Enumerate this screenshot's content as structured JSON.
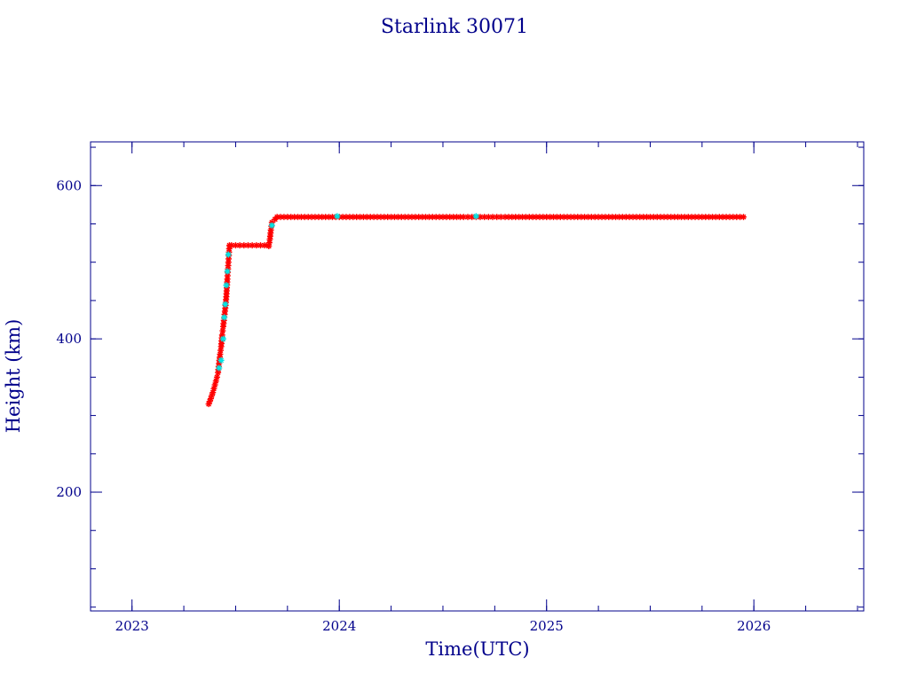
{
  "chart_data": {
    "type": "scatter",
    "title": "Starlink 30071",
    "xlabel": "Time(UTC)",
    "ylabel": "Height (km)",
    "xlim": [
      2022.8,
      2026.53
    ],
    "ylim": [
      45,
      657
    ],
    "x_major_ticks": [
      2023,
      2024,
      2025,
      2026
    ],
    "x_tick_labels": [
      "2023",
      "2024",
      "2025",
      "2026"
    ],
    "x_minor_step": 0.25,
    "y_major_ticks": [
      200,
      400,
      600
    ],
    "y_tick_labels": [
      "200",
      "400",
      "600"
    ],
    "y_minor_step": 50,
    "grid": false,
    "marker": "asterisk",
    "series": [
      {
        "color": "#ff0000",
        "points": [
          [
            2023.37,
            315
          ],
          [
            2023.38,
            322
          ],
          [
            2023.39,
            330
          ],
          [
            2023.4,
            340
          ],
          [
            2023.41,
            350
          ],
          [
            2023.415,
            356
          ],
          [
            2023.42,
            368
          ],
          [
            2023.425,
            380
          ],
          [
            2023.43,
            390
          ],
          [
            2023.435,
            405
          ],
          [
            2023.44,
            416
          ],
          [
            2023.45,
            440
          ],
          [
            2023.455,
            455
          ],
          [
            2023.46,
            478
          ],
          [
            2023.465,
            500
          ],
          [
            2023.47,
            522
          ],
          [
            2023.48,
            522
          ],
          [
            2023.5,
            522
          ],
          [
            2023.52,
            522
          ],
          [
            2023.54,
            522
          ],
          [
            2023.56,
            522
          ],
          [
            2023.58,
            522
          ],
          [
            2023.6,
            522
          ],
          [
            2023.62,
            522
          ],
          [
            2023.64,
            522
          ],
          [
            2023.66,
            521
          ],
          [
            2023.665,
            530
          ],
          [
            2023.67,
            542
          ],
          [
            2023.675,
            552
          ],
          [
            2023.69,
            556
          ],
          [
            2023.7,
            559
          ],
          [
            2023.75,
            559
          ],
          [
            2023.8,
            559
          ],
          [
            2023.85,
            559
          ],
          [
            2023.9,
            559
          ],
          [
            2023.95,
            559
          ],
          [
            2024.0,
            559
          ],
          [
            2024.05,
            559
          ],
          [
            2024.1,
            559
          ],
          [
            2024.15,
            559
          ],
          [
            2024.2,
            559
          ],
          [
            2024.25,
            559
          ],
          [
            2024.3,
            559
          ],
          [
            2024.35,
            559
          ],
          [
            2024.4,
            559
          ],
          [
            2024.45,
            559
          ],
          [
            2024.5,
            559
          ],
          [
            2024.55,
            559
          ],
          [
            2024.6,
            559
          ],
          [
            2024.64,
            559
          ],
          [
            2024.68,
            559
          ],
          [
            2024.72,
            559
          ],
          [
            2024.76,
            559
          ],
          [
            2024.8,
            559
          ],
          [
            2024.85,
            559
          ],
          [
            2024.9,
            559
          ],
          [
            2024.95,
            559
          ],
          [
            2025.0,
            559
          ],
          [
            2025.05,
            559
          ],
          [
            2025.1,
            559
          ],
          [
            2025.15,
            559
          ],
          [
            2025.2,
            559
          ],
          [
            2025.25,
            559
          ],
          [
            2025.3,
            559
          ],
          [
            2025.35,
            559
          ],
          [
            2025.4,
            559
          ],
          [
            2025.45,
            559
          ],
          [
            2025.5,
            559
          ],
          [
            2025.55,
            559
          ],
          [
            2025.6,
            559
          ],
          [
            2025.65,
            559
          ],
          [
            2025.7,
            559
          ],
          [
            2025.75,
            559
          ],
          [
            2025.8,
            559
          ],
          [
            2025.85,
            559
          ],
          [
            2025.9,
            559
          ],
          [
            2025.95,
            559
          ]
        ]
      },
      {
        "color": "#00e5e5",
        "points": [
          [
            2023.42,
            362
          ],
          [
            2023.43,
            372
          ],
          [
            2023.44,
            400
          ],
          [
            2023.445,
            428
          ],
          [
            2023.45,
            445
          ],
          [
            2023.455,
            470
          ],
          [
            2023.46,
            488
          ],
          [
            2023.465,
            510
          ],
          [
            2023.675,
            548
          ],
          [
            2023.99,
            560
          ],
          [
            2024.66,
            560
          ]
        ]
      }
    ]
  }
}
